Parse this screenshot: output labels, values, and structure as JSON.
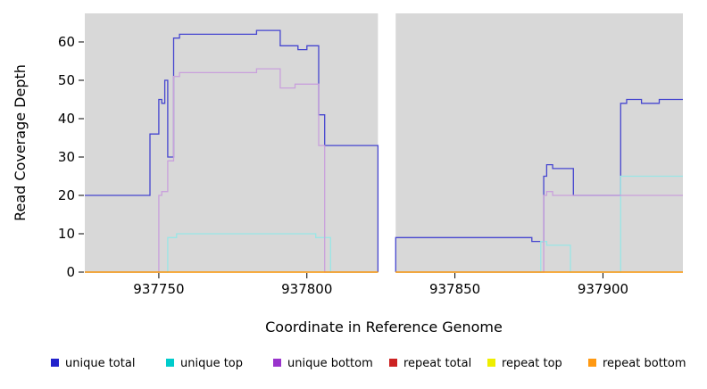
{
  "axes": {
    "x_label": "Coordinate in Reference Genome",
    "y_label": "Read Coverage Depth",
    "x_ticks": [
      937750,
      937800,
      937850,
      937900
    ],
    "y_ticks": [
      0,
      10,
      20,
      30,
      40,
      50,
      60
    ],
    "x_range": [
      937725,
      937927
    ],
    "y_range": [
      0,
      65
    ]
  },
  "plot": {
    "background_color": "#d8d8d8",
    "gap_region": [
      937824,
      937830
    ],
    "gap_color": "#ffffff"
  },
  "chart_data": {
    "type": "line",
    "title": "",
    "xlabel": "Coordinate in Reference Genome",
    "ylabel": "Read Coverage Depth",
    "xlim": [
      937725,
      937927
    ],
    "ylim": [
      0,
      65
    ],
    "grid": false,
    "legend_position": "bottom",
    "series": [
      {
        "id": "unique-total",
        "name": "unique total",
        "legend_color": "#2222cc",
        "line_color": "#4545cf",
        "segments": [
          [
            [
              937725,
              20
            ],
            [
              937747,
              20
            ],
            [
              937747,
              36
            ],
            [
              937750,
              36
            ],
            [
              937750,
              45
            ],
            [
              937751,
              45
            ],
            [
              937751,
              44
            ],
            [
              937752,
              44
            ],
            [
              937752,
              50
            ],
            [
              937753,
              50
            ],
            [
              937753,
              30
            ],
            [
              937755,
              30
            ],
            [
              937755,
              61
            ],
            [
              937757,
              61
            ],
            [
              937757,
              62
            ],
            [
              937783,
              62
            ],
            [
              937783,
              63
            ],
            [
              937791,
              63
            ],
            [
              937791,
              59
            ],
            [
              937797,
              59
            ],
            [
              937797,
              58
            ],
            [
              937800,
              58
            ],
            [
              937800,
              59
            ],
            [
              937804,
              59
            ],
            [
              937804,
              41
            ],
            [
              937806,
              41
            ],
            [
              937806,
              33
            ],
            [
              937824,
              33
            ],
            [
              937824,
              0
            ]
          ],
          [
            [
              937830,
              0
            ],
            [
              937830,
              9
            ],
            [
              937876,
              9
            ],
            [
              937876,
              8
            ],
            [
              937880,
              8
            ],
            [
              937880,
              25
            ],
            [
              937881,
              25
            ],
            [
              937881,
              28
            ],
            [
              937883,
              28
            ],
            [
              937883,
              27
            ],
            [
              937890,
              27
            ],
            [
              937890,
              20
            ],
            [
              937906,
              20
            ],
            [
              937906,
              44
            ],
            [
              937908,
              44
            ],
            [
              937908,
              45
            ],
            [
              937913,
              45
            ],
            [
              937913,
              44
            ],
            [
              937919,
              44
            ],
            [
              937919,
              45
            ],
            [
              937927,
              45
            ]
          ]
        ]
      },
      {
        "id": "unique-top",
        "name": "unique top",
        "legend_color": "#00cccc",
        "line_color": "#99e6e6",
        "segments": [
          [
            [
              937725,
              0
            ],
            [
              937753,
              0
            ],
            [
              937753,
              9
            ],
            [
              937756,
              9
            ],
            [
              937756,
              10
            ],
            [
              937803,
              10
            ],
            [
              937803,
              9
            ],
            [
              937808,
              9
            ],
            [
              937808,
              0
            ],
            [
              937824,
              0
            ]
          ],
          [
            [
              937830,
              0
            ],
            [
              937879,
              0
            ],
            [
              937879,
              8
            ],
            [
              937881,
              8
            ],
            [
              937881,
              7
            ],
            [
              937889,
              7
            ],
            [
              937889,
              0
            ],
            [
              937906,
              0
            ],
            [
              937906,
              25
            ],
            [
              937927,
              25
            ]
          ]
        ]
      },
      {
        "id": "unique-bottom",
        "name": "unique bottom",
        "legend_color": "#9933cc",
        "line_color": "#c9a0dc",
        "segments": [
          [
            [
              937725,
              0
            ],
            [
              937750,
              0
            ],
            [
              937750,
              20
            ],
            [
              937751,
              20
            ],
            [
              937751,
              21
            ],
            [
              937753,
              21
            ],
            [
              937753,
              29
            ],
            [
              937755,
              29
            ],
            [
              937755,
              51
            ],
            [
              937757,
              51
            ],
            [
              937757,
              52
            ],
            [
              937783,
              52
            ],
            [
              937783,
              53
            ],
            [
              937791,
              53
            ],
            [
              937791,
              48
            ],
            [
              937796,
              48
            ],
            [
              937796,
              49
            ],
            [
              937804,
              49
            ],
            [
              937804,
              33
            ],
            [
              937806,
              33
            ],
            [
              937806,
              0
            ],
            [
              937824,
              0
            ]
          ],
          [
            [
              937830,
              0
            ],
            [
              937880,
              0
            ],
            [
              937880,
              20
            ],
            [
              937881,
              20
            ],
            [
              937881,
              21
            ],
            [
              937883,
              21
            ],
            [
              937883,
              20
            ],
            [
              937927,
              20
            ]
          ]
        ]
      },
      {
        "id": "repeat-total",
        "name": "repeat total",
        "legend_color": "#cc2222",
        "line_color": "#cc2222",
        "segments": [
          [
            [
              937725,
              0
            ],
            [
              937824,
              0
            ]
          ],
          [
            [
              937830,
              0
            ],
            [
              937927,
              0
            ]
          ]
        ]
      },
      {
        "id": "repeat-top",
        "name": "repeat top",
        "legend_color": "#eeee00",
        "line_color": "#eeee00",
        "segments": [
          [
            [
              937725,
              0
            ],
            [
              937824,
              0
            ]
          ],
          [
            [
              937830,
              0
            ],
            [
              937927,
              0
            ]
          ]
        ]
      },
      {
        "id": "repeat-bottom",
        "name": "repeat bottom",
        "legend_color": "#ff9912",
        "line_color": "#ff9912",
        "segments": [
          [
            [
              937725,
              0
            ],
            [
              937824,
              0
            ]
          ],
          [
            [
              937830,
              0
            ],
            [
              937927,
              0
            ]
          ]
        ]
      }
    ]
  }
}
